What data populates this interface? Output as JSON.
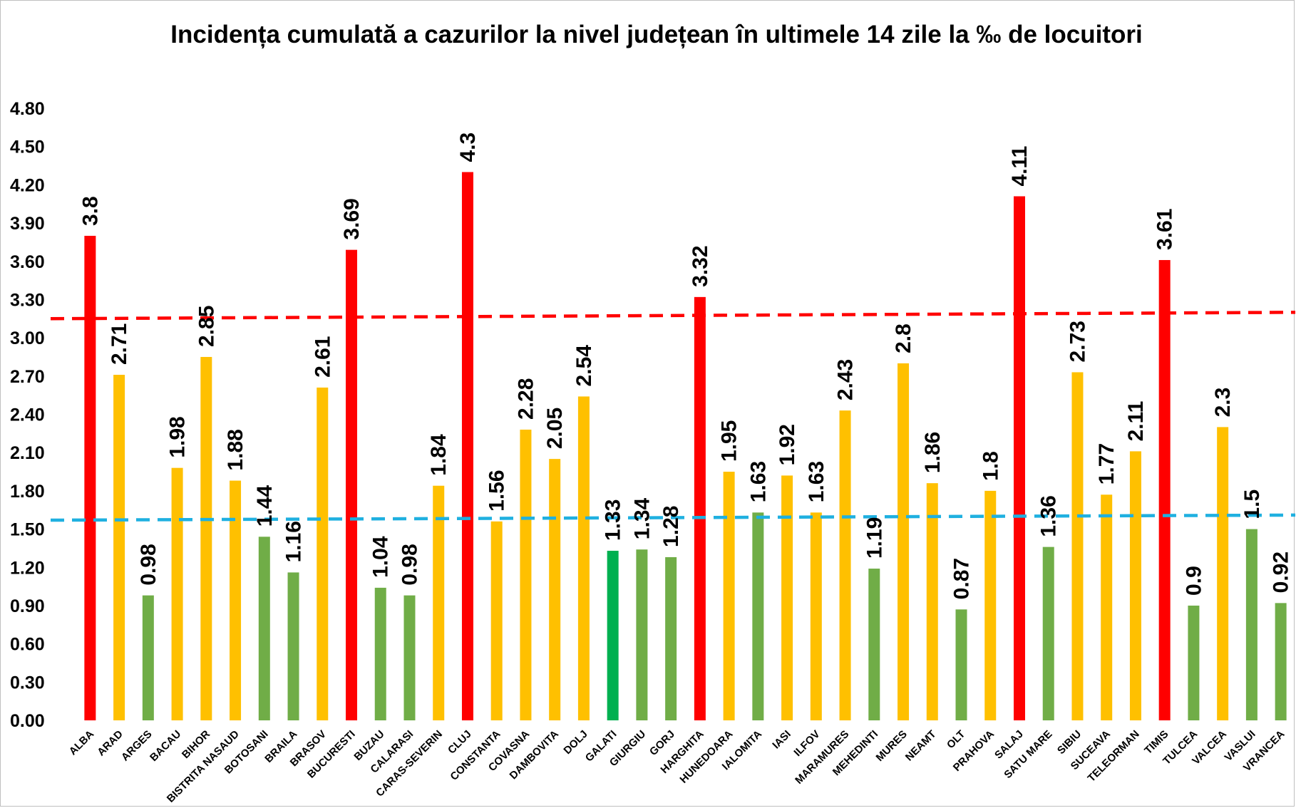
{
  "chart_data": {
    "type": "bar",
    "title": "Incidența cumulată a cazurilor la nivel județean în ultimele 14 zile la ‰ de locuitori",
    "xlabel": "",
    "ylabel": "",
    "ylim": [
      0,
      4.8
    ],
    "yticks": [
      "0.00",
      "0.30",
      "0.60",
      "0.90",
      "1.20",
      "1.50",
      "1.80",
      "2.10",
      "2.40",
      "2.70",
      "3.00",
      "3.30",
      "3.60",
      "3.90",
      "4.20",
      "4.50",
      "4.80"
    ],
    "grid": false,
    "legend": "none",
    "categories": [
      "ALBA",
      "ARAD",
      "ARGES",
      "BACAU",
      "BIHOR",
      "BISTRITA NASAUD",
      "BOTOSANI",
      "BRAILA",
      "BRASOV",
      "BUCURESTI",
      "BUZAU",
      "CALARASI",
      "CARAS-SEVERIN",
      "CLUJ",
      "CONSTANTA",
      "COVASNA",
      "DAMBOVITA",
      "DOLJ",
      "GALATI",
      "GIURGIU",
      "GORJ",
      "HARGHITA",
      "HUNEDOARA",
      "IALOMITA",
      "IASI",
      "ILFOV",
      "MARAMURES",
      "MEHEDINTI",
      "MURES",
      "NEAMT",
      "OLT",
      "PRAHOVA",
      "SALAJ",
      "SATU MARE",
      "SIBIU",
      "SUCEAVA",
      "TELEORMAN",
      "TIMIS",
      "TULCEA",
      "VALCEA",
      "VASLUI",
      "VRANCEA"
    ],
    "values": [
      3.8,
      2.71,
      0.98,
      1.98,
      2.85,
      1.88,
      1.44,
      1.16,
      2.61,
      3.69,
      1.04,
      0.98,
      1.84,
      4.3,
      1.56,
      2.28,
      2.05,
      2.54,
      1.33,
      1.34,
      1.28,
      3.32,
      1.95,
      1.63,
      1.92,
      1.63,
      2.43,
      1.19,
      2.8,
      1.86,
      0.87,
      1.8,
      4.11,
      1.36,
      2.73,
      1.77,
      2.11,
      3.61,
      0.9,
      2.3,
      1.5,
      0.92
    ],
    "data_labels": [
      "3.8",
      "2.71",
      "0.98",
      "1.98",
      "2.85",
      "1.88",
      "1.44",
      "1.16",
      "2.61",
      "3.69",
      "1.04",
      "0.98",
      "1.84",
      "4.3",
      "1.56",
      "2.28",
      "2.05",
      "2.54",
      "1.33",
      "1.34",
      "1.28",
      "3.32",
      "1.95",
      "1.63",
      "1.92",
      "1.63",
      "2.43",
      "1.19",
      "2.8",
      "1.86",
      "0.87",
      "1.8",
      "4.11",
      "1.36",
      "2.73",
      "1.77",
      "2.11",
      "3.61",
      "0.9",
      "2.3",
      "1.5",
      "0.92"
    ],
    "colors": {
      "red": "#ff0000",
      "orange": "#ffc000",
      "green": "#70ad47",
      "bright_green": "#00b050",
      "red_line": "#ff0000",
      "blue_line": "#1fb0e0"
    },
    "bar_colors": [
      "red",
      "orange",
      "green",
      "orange",
      "orange",
      "orange",
      "green",
      "green",
      "orange",
      "red",
      "green",
      "green",
      "orange",
      "red",
      "orange",
      "orange",
      "orange",
      "orange",
      "bright_green",
      "green",
      "green",
      "red",
      "orange",
      "green",
      "orange",
      "orange",
      "orange",
      "green",
      "orange",
      "orange",
      "green",
      "orange",
      "red",
      "green",
      "orange",
      "orange",
      "orange",
      "red",
      "green",
      "orange",
      "green",
      "green"
    ],
    "reference_lines": [
      {
        "style": "dashed",
        "color": "red_line",
        "y_start": 3.15,
        "y_end": 3.2
      },
      {
        "style": "dashed",
        "color": "blue_line",
        "y_start": 1.57,
        "y_end": 1.61
      }
    ]
  }
}
